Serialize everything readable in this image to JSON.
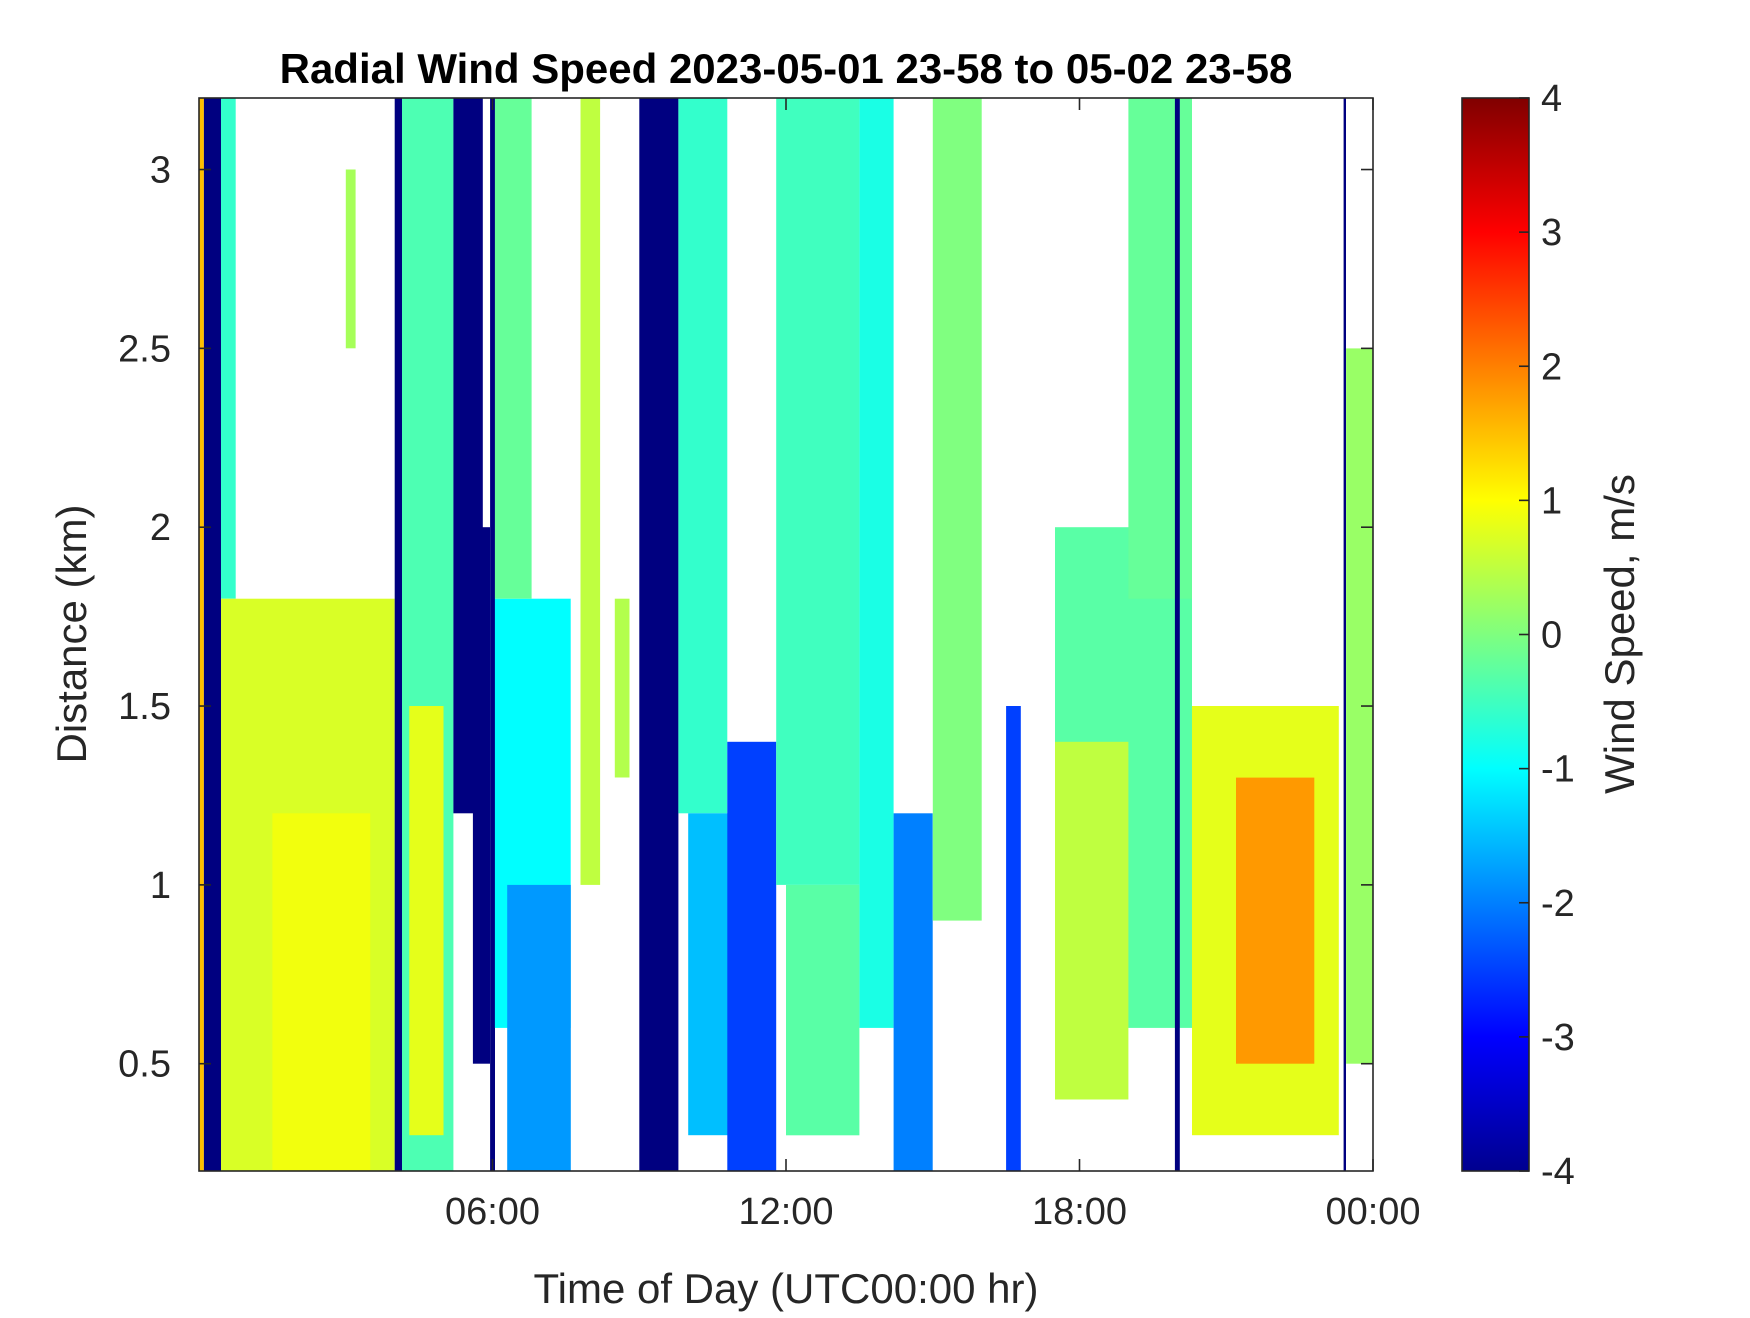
{
  "chart_data": {
    "type": "heatmap",
    "title": "Radial Wind Speed 2023-05-01 23-58 to 05-02 23-58",
    "xlabel": "Time of Day (UTC00:00 hr)",
    "ylabel": "Distance (km)",
    "colorbar_label": "Wind Speed, m/s",
    "colormap": "jet",
    "xlim_hours": [
      0,
      24
    ],
    "ylim_km": [
      0.2,
      3.2
    ],
    "clim_ms": [
      -4,
      4
    ],
    "x_tick_values": [
      6,
      12,
      18,
      24
    ],
    "x_tick_labels": [
      "06:00",
      "12:00",
      "18:00",
      "00:00"
    ],
    "y_tick_values": [
      0.5,
      1,
      1.5,
      2,
      2.5,
      3
    ],
    "y_tick_labels": [
      "0.5",
      "1",
      "1.5",
      "2",
      "2.5",
      "3"
    ],
    "colorbar_tick_values": [
      -4,
      -3,
      -2,
      -1,
      0,
      1,
      2,
      3,
      4
    ],
    "colorbar_tick_labels": [
      "-4",
      "-3",
      "-2",
      "-1",
      "0",
      "1",
      "2",
      "3",
      "4"
    ],
    "grid": false,
    "white_means": "no data",
    "regions": [
      {
        "t": [
          0.0,
          0.1
        ],
        "d": [
          0.2,
          3.2
        ],
        "v": 1.5
      },
      {
        "t": [
          0.1,
          0.45
        ],
        "d": [
          0.2,
          3.2
        ],
        "v": -4
      },
      {
        "t": [
          0.45,
          0.75
        ],
        "d": [
          1.8,
          3.2
        ],
        "v": -0.6
      },
      {
        "t": [
          0.45,
          4.0
        ],
        "d": [
          0.2,
          1.8
        ],
        "v": 0.7
      },
      {
        "t": [
          1.5,
          3.5
        ],
        "d": [
          0.2,
          1.2
        ],
        "v": 0.9
      },
      {
        "t": [
          3.0,
          3.2
        ],
        "d": [
          2.5,
          3.0
        ],
        "v": 0.3
      },
      {
        "t": [
          4.0,
          4.15
        ],
        "d": [
          0.2,
          3.2
        ],
        "v": -4
      },
      {
        "t": [
          4.15,
          5.2
        ],
        "d": [
          0.2,
          3.2
        ],
        "v": -0.4
      },
      {
        "t": [
          4.3,
          5.0
        ],
        "d": [
          0.3,
          1.5
        ],
        "v": 0.8
      },
      {
        "t": [
          5.2,
          5.8
        ],
        "d": [
          1.2,
          3.2
        ],
        "v": -4
      },
      {
        "t": [
          5.6,
          5.95
        ],
        "d": [
          0.5,
          2.0
        ],
        "v": -4
      },
      {
        "t": [
          5.95,
          6.05
        ],
        "d": [
          0.2,
          3.2
        ],
        "v": -4
      },
      {
        "t": [
          6.05,
          7.6
        ],
        "d": [
          0.6,
          1.8
        ],
        "v": -1.0
      },
      {
        "t": [
          6.05,
          6.8
        ],
        "d": [
          1.8,
          3.2
        ],
        "v": -0.2
      },
      {
        "t": [
          6.3,
          7.6
        ],
        "d": [
          0.2,
          1.0
        ],
        "v": -1.8
      },
      {
        "t": [
          7.8,
          8.2
        ],
        "d": [
          1.0,
          3.2
        ],
        "v": 0.5
      },
      {
        "t": [
          8.5,
          8.8
        ],
        "d": [
          1.3,
          1.8
        ],
        "v": 0.4
      },
      {
        "t": [
          9.0,
          9.8
        ],
        "d": [
          0.2,
          3.2
        ],
        "v": -4
      },
      {
        "t": [
          9.8,
          10.8
        ],
        "d": [
          1.2,
          3.2
        ],
        "v": -0.6
      },
      {
        "t": [
          10.0,
          11.0
        ],
        "d": [
          0.3,
          1.2
        ],
        "v": -1.5
      },
      {
        "t": [
          10.8,
          11.8
        ],
        "d": [
          0.2,
          1.4
        ],
        "v": -2.5
      },
      {
        "t": [
          11.8,
          13.5
        ],
        "d": [
          1.0,
          3.2
        ],
        "v": -0.5
      },
      {
        "t": [
          12.0,
          13.5
        ],
        "d": [
          0.3,
          1.0
        ],
        "v": -0.3
      },
      {
        "t": [
          13.5,
          14.2
        ],
        "d": [
          0.6,
          3.2
        ],
        "v": -0.8
      },
      {
        "t": [
          14.2,
          15.0
        ],
        "d": [
          0.2,
          1.2
        ],
        "v": -2.0
      },
      {
        "t": [
          15.0,
          16.0
        ],
        "d": [
          0.9,
          3.2
        ],
        "v": 0.0
      },
      {
        "t": [
          16.5,
          16.8
        ],
        "d": [
          0.2,
          1.5
        ],
        "v": -2.5
      },
      {
        "t": [
          17.5,
          20.3
        ],
        "d": [
          0.6,
          2.0
        ],
        "v": -0.3
      },
      {
        "t": [
          17.5,
          19.0
        ],
        "d": [
          0.4,
          1.4
        ],
        "v": 0.5
      },
      {
        "t": [
          19.0,
          20.3
        ],
        "d": [
          1.8,
          3.2
        ],
        "v": -0.2
      },
      {
        "t": [
          19.95,
          20.05
        ],
        "d": [
          0.2,
          3.2
        ],
        "v": -4
      },
      {
        "t": [
          20.3,
          23.3
        ],
        "d": [
          0.3,
          1.5
        ],
        "v": 0.8
      },
      {
        "t": [
          21.2,
          22.8
        ],
        "d": [
          0.5,
          1.3
        ],
        "v": 1.8
      },
      {
        "t": [
          23.4,
          23.45
        ],
        "d": [
          0.2,
          3.2
        ],
        "v": -4
      },
      {
        "t": [
          23.45,
          24.0
        ],
        "d": [
          0.5,
          2.5
        ],
        "v": 0.2
      }
    ]
  }
}
